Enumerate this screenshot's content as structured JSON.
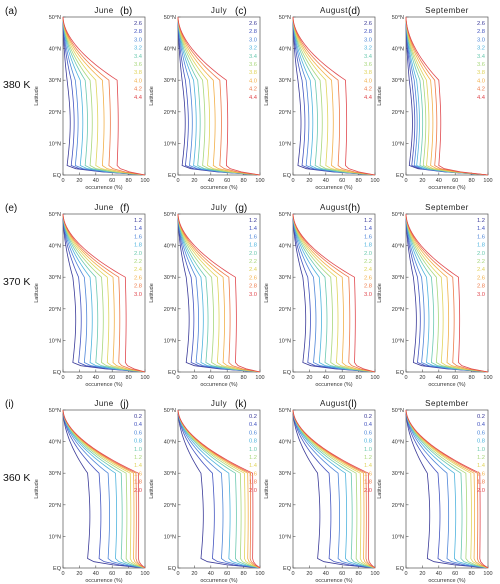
{
  "chart_data": {
    "type": "line",
    "panel_grid": {
      "rows": 3,
      "cols": 4
    },
    "months": [
      "June",
      "July",
      "August",
      "September"
    ],
    "row_labels": [
      "380 K",
      "370 K",
      "360 K"
    ],
    "panel_labels": [
      "(a)",
      "(b)",
      "(c)",
      "(d)",
      "(e)",
      "(f)",
      "(g)",
      "(h)",
      "(i)",
      "(j)",
      "(k)",
      "(l)"
    ],
    "xlabel": "occurrence (%)",
    "ylabel": "Latitude",
    "xticks": [
      "0",
      "20",
      "40",
      "60",
      "80",
      "100"
    ],
    "yticks": [
      "EQ",
      "10°N",
      "20°N",
      "30°N",
      "40°N",
      "50°N"
    ],
    "xlim": [
      0,
      100
    ],
    "ylim": [
      0,
      50
    ],
    "rows": [
      {
        "level": "380 K",
        "threshold_labels": [
          "2.6",
          "2.8",
          "3.0",
          "3.2",
          "3.4",
          "3.6",
          "3.8",
          "4.0",
          "4.2",
          "4.4"
        ],
        "line_colors": [
          "#3a3a98",
          "#4455c0",
          "#4f86d8",
          "#4fb4de",
          "#6cc9b0",
          "#a8d77c",
          "#e0d45c",
          "#f2b04a",
          "#ee7b4a",
          "#e0484e"
        ],
        "mid_x": [
          [
            5,
            10,
            15,
            21,
            27,
            33,
            40,
            48,
            56,
            66
          ],
          [
            5,
            9,
            14,
            19,
            24,
            30,
            36,
            43,
            51,
            59
          ],
          [
            6,
            11,
            16,
            21,
            27,
            33,
            40,
            47,
            55,
            64
          ],
          [
            4,
            7,
            10,
            13,
            17,
            21,
            25,
            30,
            35,
            40
          ]
        ]
      },
      {
        "level": "370 K",
        "threshold_labels": [
          "1.2",
          "1.4",
          "1.6",
          "1.8",
          "2.0",
          "2.2",
          "2.4",
          "2.6",
          "2.8",
          "3.0"
        ],
        "line_colors": [
          "#3a3a98",
          "#4455c0",
          "#4f86d8",
          "#4fb4de",
          "#6cc9b0",
          "#a8d77c",
          "#e0d45c",
          "#f2b04a",
          "#ee7b4a",
          "#e0484e"
        ],
        "mid_x": [
          [
            12,
            19,
            26,
            33,
            40,
            47,
            54,
            61,
            68,
            76
          ],
          [
            10,
            16,
            22,
            28,
            34,
            41,
            48,
            55,
            62,
            70
          ],
          [
            12,
            18,
            25,
            32,
            39,
            46,
            53,
            60,
            68,
            75
          ],
          [
            9,
            14,
            19,
            25,
            31,
            37,
            43,
            50,
            57,
            64
          ]
        ]
      },
      {
        "level": "360 K",
        "threshold_labels": [
          "0.2",
          "0.4",
          "0.6",
          "0.8",
          "1.0",
          "1.2",
          "1.4",
          "1.6",
          "1.8",
          "2.0"
        ],
        "line_colors": [
          "#3a3a98",
          "#4455c0",
          "#4f86d8",
          "#4fb4de",
          "#6cc9b0",
          "#a8d77c",
          "#e0d45c",
          "#f2b04a",
          "#ee7b4a",
          "#e0484e"
        ],
        "mid_x": [
          [
            30,
            44,
            55,
            64,
            71,
            77,
            82,
            86,
            89,
            92
          ],
          [
            28,
            42,
            53,
            62,
            70,
            76,
            81,
            85,
            88,
            91
          ],
          [
            30,
            44,
            55,
            64,
            71,
            77,
            82,
            86,
            89,
            92
          ],
          [
            26,
            39,
            50,
            59,
            67,
            73,
            79,
            83,
            87,
            90
          ]
        ]
      }
    ]
  }
}
